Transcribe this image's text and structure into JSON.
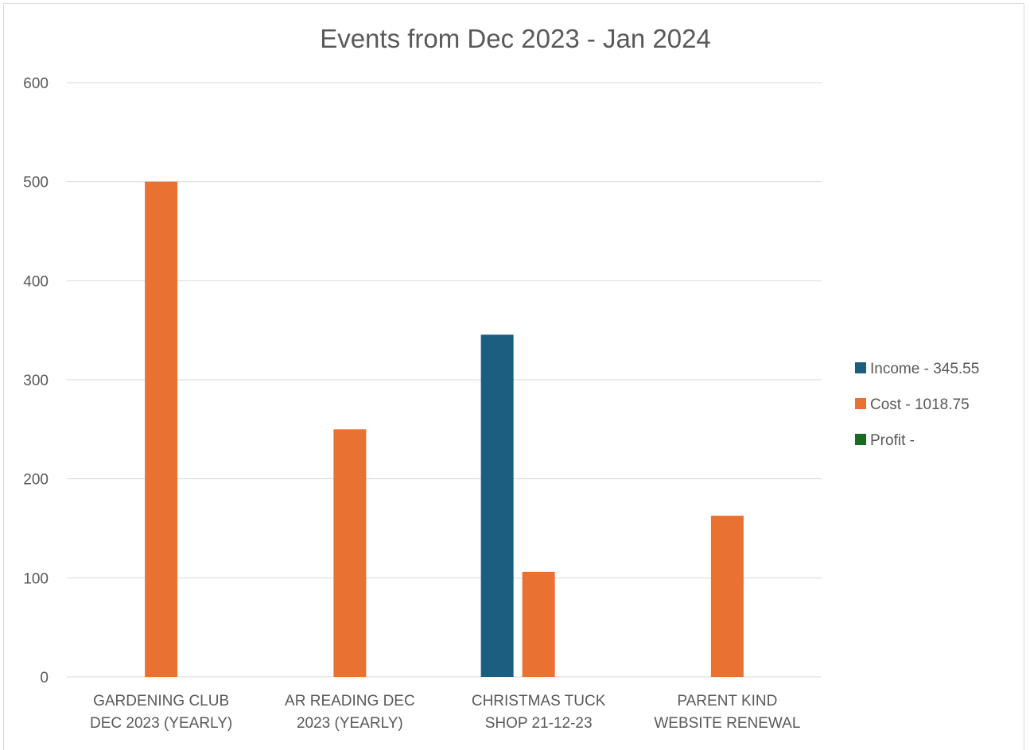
{
  "chart_data": {
    "type": "bar",
    "title": "Events from Dec 2023 - Jan 2024",
    "xlabel": "",
    "ylabel": "",
    "categories": [
      [
        "GARDENING CLUB",
        "DEC 2023 (YEARLY)"
      ],
      [
        "AR READING DEC",
        "2023 (YEARLY)"
      ],
      [
        "CHRISTMAS TUCK",
        "SHOP 21-12-23"
      ],
      [
        "PARENT KIND",
        "WEBSITE RENEWAL"
      ]
    ],
    "series": [
      {
        "name": "Income - 345.55",
        "color": "#1b5e80",
        "values": [
          0,
          0,
          345.55,
          0
        ]
      },
      {
        "name": "Cost - 1018.75",
        "color": "#e97132",
        "values": [
          500,
          250,
          106,
          162.75
        ]
      },
      {
        "name": "Profit -",
        "color": "#196b24",
        "values": [
          0,
          0,
          0,
          0
        ]
      }
    ],
    "ylim": [
      0,
      600
    ],
    "yticks": [
      0,
      100,
      200,
      300,
      400,
      500,
      600
    ],
    "grid": true,
    "legend_position": "right"
  }
}
